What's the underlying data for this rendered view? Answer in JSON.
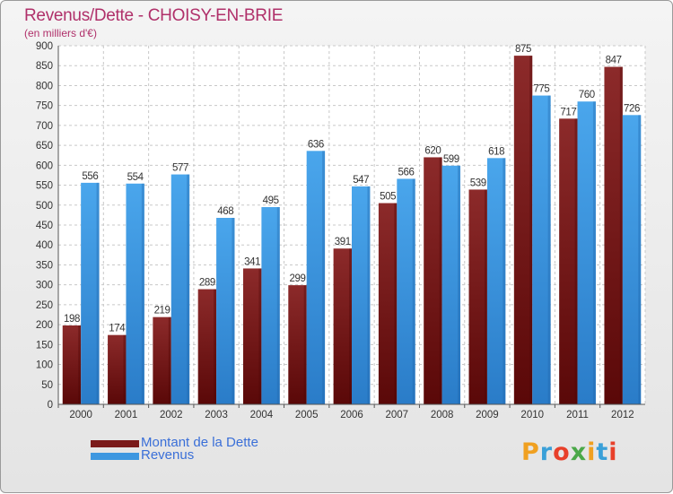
{
  "title": "Revenus/Dette - CHOISY-EN-BRIE",
  "subtitle": "(en milliers d'€)",
  "logo": {
    "text": "Proxiti",
    "colors": [
      "#f0a020",
      "#3aa0d8",
      "#e8402a",
      "#4aa848",
      "#f0a020",
      "#3aa0d8",
      "#e8402a"
    ]
  },
  "chart_data": {
    "type": "bar",
    "categories": [
      "2000",
      "2001",
      "2002",
      "2003",
      "2004",
      "2005",
      "2006",
      "2007",
      "2008",
      "2009",
      "2010",
      "2011",
      "2012"
    ],
    "series": [
      {
        "name": "Montant de la Dette",
        "color": "#7a1a1a",
        "values": [
          198,
          174,
          219,
          289,
          341,
          299,
          391,
          505,
          620,
          539,
          875,
          717,
          847
        ]
      },
      {
        "name": "Revenus",
        "color": "#3d97e0",
        "values": [
          556,
          554,
          577,
          468,
          495,
          636,
          547,
          566,
          599,
          618,
          775,
          760,
          726
        ]
      }
    ],
    "ylim": [
      0,
      900
    ],
    "yticks": [
      0,
      50,
      100,
      150,
      200,
      250,
      300,
      350,
      400,
      450,
      500,
      550,
      600,
      650,
      700,
      750,
      800,
      850,
      900
    ],
    "grid": true,
    "legend": "bottom-left"
  }
}
